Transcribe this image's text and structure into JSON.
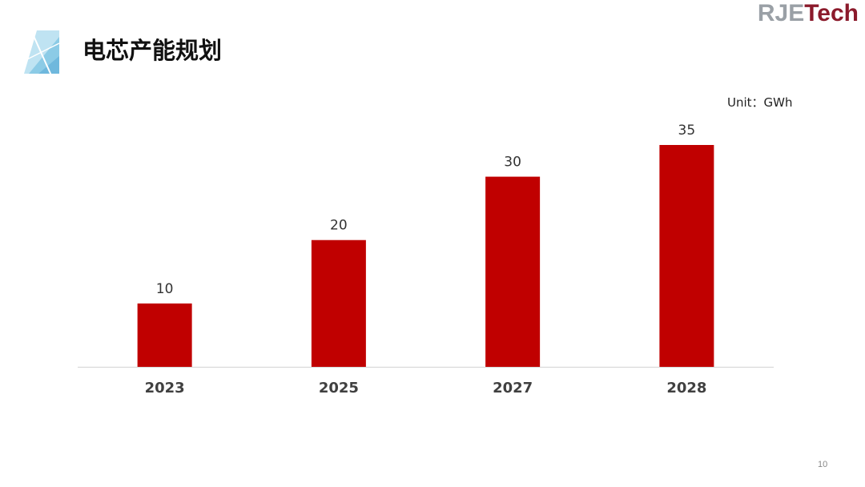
{
  "slide": {
    "title": "电芯产能规划",
    "unit": "Unit：GWh",
    "logo": {
      "part_a": "RJE",
      "part_b": "Tech"
    },
    "page_number": "10"
  },
  "colors": {
    "bar": "#c00000",
    "axis": "#d9d9d9",
    "logo_gray": "#9aa0a6",
    "logo_red": "#8b1a2b",
    "decor_blue": "#9fd3ea"
  },
  "chart_data": {
    "type": "bar",
    "categories": [
      "2023",
      "2025",
      "2027",
      "2028"
    ],
    "values": [
      10,
      20,
      30,
      35
    ],
    "data_labels": [
      "10",
      "20",
      "30",
      "35"
    ],
    "title": "",
    "xlabel": "",
    "ylabel": "",
    "ylim": [
      0,
      35
    ],
    "grid": false,
    "legend": "none"
  }
}
